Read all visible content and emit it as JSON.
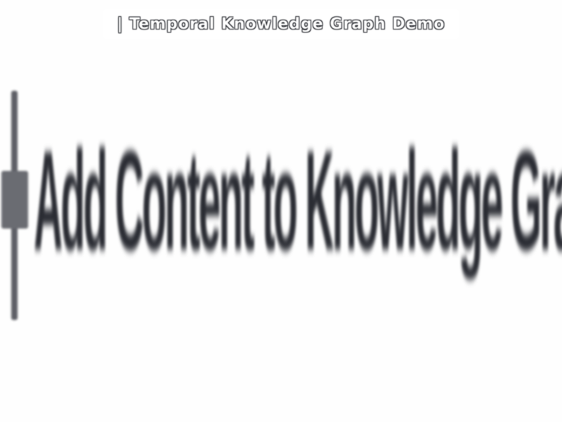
{
  "title_bar": {
    "text": "| Temporal Knowledge Graph Demo"
  },
  "section": {
    "heading": "Add Content to Knowledge Graph",
    "icon": "plus-icon"
  }
}
